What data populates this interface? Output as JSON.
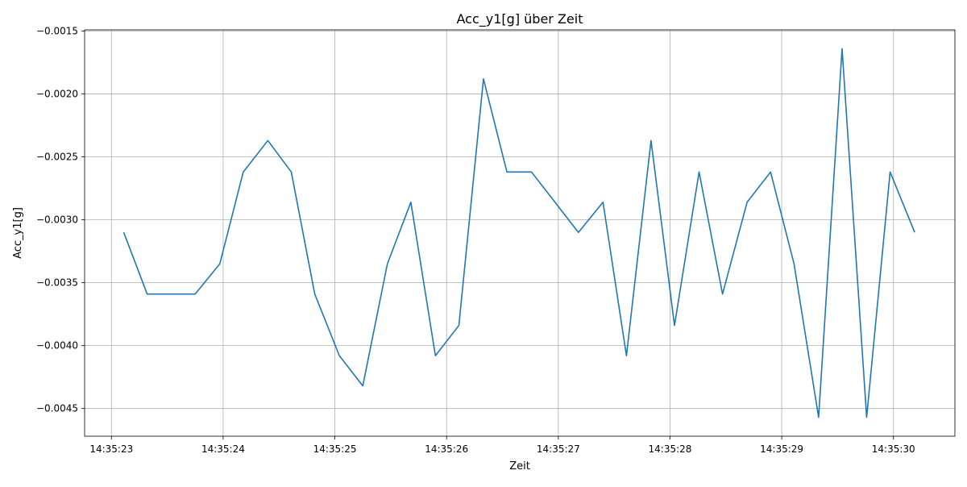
{
  "chart_data": {
    "type": "line",
    "title": "Acc_y1[g] über Zeit",
    "xlabel": "Zeit",
    "ylabel": "Acc_y1[g]",
    "grid": true,
    "line_color": "#1f77b4",
    "xlim": [
      "14:35:22.76",
      "14:35:30.55"
    ],
    "ylim": [
      -0.00472,
      -0.00149
    ],
    "xticks": [
      "14:35:23",
      "14:35:24",
      "14:35:25",
      "14:35:26",
      "14:35:27",
      "14:35:28",
      "14:35:29",
      "14:35:30"
    ],
    "yticks": [
      -0.0015,
      -0.002,
      -0.0025,
      -0.003,
      -0.0035,
      -0.004,
      -0.0045
    ],
    "ytick_labels": [
      "−0.0015",
      "−0.0020",
      "−0.0025",
      "−0.0030",
      "−0.0035",
      "−0.0040",
      "−0.0045"
    ],
    "series": [
      {
        "x": [
          "14:35:23.11",
          "14:35:23.32",
          "14:35:23.54",
          "14:35:23.75",
          "14:35:23.97",
          "14:35:24.18",
          "14:35:24.40",
          "14:35:24.61",
          "14:35:24.82",
          "14:35:25.04",
          "14:35:25.25",
          "14:35:25.47",
          "14:35:25.68",
          "14:35:25.90",
          "14:35:26.11",
          "14:35:26.33",
          "14:35:26.54",
          "14:35:26.76",
          "14:35:26.97",
          "14:35:27.18",
          "14:35:27.40",
          "14:35:27.61",
          "14:35:27.83",
          "14:35:28.04",
          "14:35:28.26",
          "14:35:28.47",
          "14:35:28.69",
          "14:35:28.90",
          "14:35:29.11",
          "14:35:29.33",
          "14:35:29.54",
          "14:35:29.76",
          "14:35:29.97",
          "14:35:30.19"
        ],
        "values": [
          -0.0031,
          -0.00359,
          -0.00359,
          -0.00359,
          -0.00335,
          -0.00262,
          -0.00237,
          -0.00262,
          -0.00359,
          -0.00408,
          -0.00432,
          -0.00335,
          -0.00286,
          -0.00408,
          -0.00384,
          -0.00188,
          -0.00262,
          -0.00262,
          -0.00286,
          -0.0031,
          -0.00286,
          -0.00408,
          -0.00237,
          -0.00384,
          -0.00262,
          -0.00359,
          -0.00286,
          -0.00262,
          -0.00335,
          -0.00457,
          -0.00164,
          -0.00457,
          -0.00262,
          -0.0031
        ]
      }
    ]
  }
}
